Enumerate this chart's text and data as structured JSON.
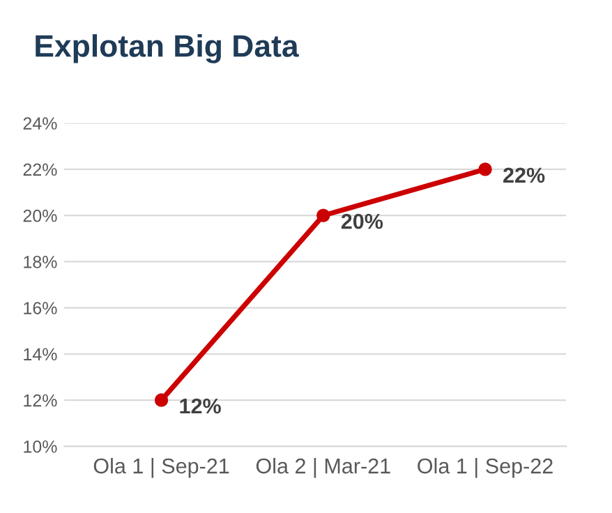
{
  "chart_data": {
    "type": "line",
    "title": "Explotan Big Data",
    "categories": [
      "Ola 1 | Sep-21",
      "Ola 2 | Mar-21",
      "Ola 1 | Sep-22"
    ],
    "series": [
      {
        "color": "#cc0000",
        "values": [
          12,
          20,
          22
        ]
      }
    ],
    "value_labels": [
      "12%",
      "20%",
      "22%"
    ],
    "ylim": [
      10,
      24
    ],
    "yticks": [
      {
        "value": 10,
        "label": "10%"
      },
      {
        "value": 12,
        "label": "12%"
      },
      {
        "value": 14,
        "label": "14%"
      },
      {
        "value": 16,
        "label": "16%"
      },
      {
        "value": 18,
        "label": "18%"
      },
      {
        "value": 20,
        "label": "20%"
      },
      {
        "value": 22,
        "label": "22%"
      },
      {
        "value": 24,
        "label": "24%"
      }
    ],
    "grid": "y",
    "marker": "circle",
    "line_style": "solid",
    "legend": false
  }
}
